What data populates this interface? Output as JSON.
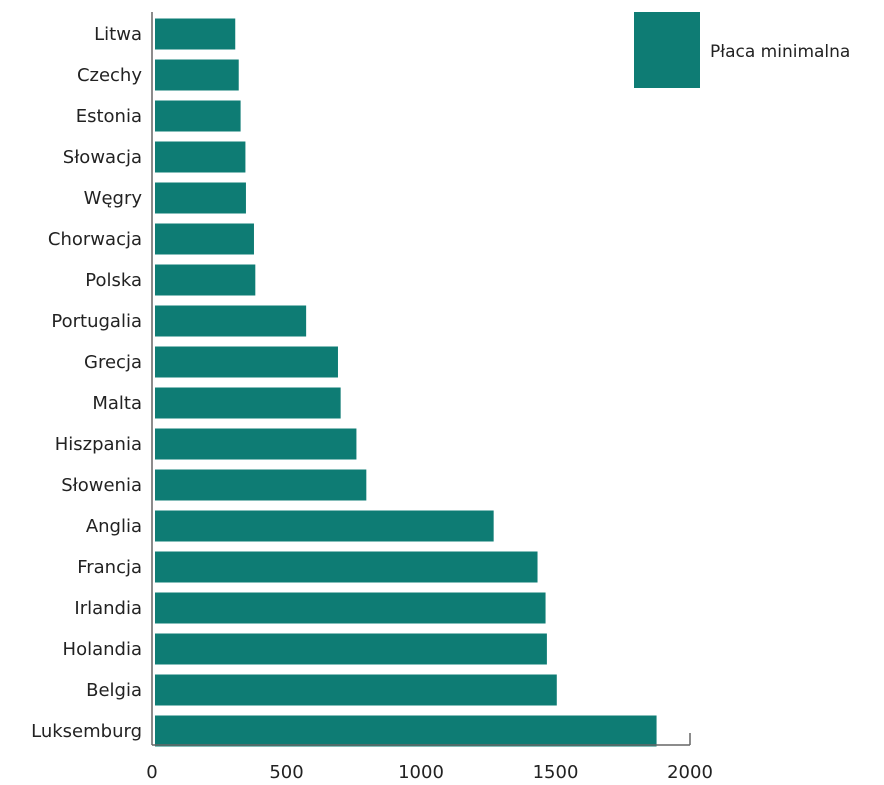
{
  "chart_data": {
    "type": "bar",
    "orientation": "horizontal",
    "categories": [
      "Litwa",
      "Czechy",
      "Estonia",
      "Słowacja",
      "Węgry",
      "Chorwacja",
      "Polska",
      "Portugalia",
      "Grecja",
      "Malta",
      "Hiszpania",
      "Słowenia",
      "Anglia",
      "Francja",
      "Irlandia",
      "Holandia",
      "Belgia",
      "Luksemburg"
    ],
    "series": [
      {
        "name": "Płaca minimalna",
        "values": [
          300,
          313,
          320,
          338,
          340,
          370,
          375,
          565,
          684,
          694,
          753,
          790,
          1266,
          1430,
          1460,
          1465,
          1502,
          1875
        ]
      }
    ],
    "xlim": [
      0,
      2000
    ],
    "x_ticks": [
      "0",
      "500",
      "1000",
      "1500",
      "2000"
    ],
    "grid": false,
    "legend_position": "top-right",
    "colors": {
      "bar": "#0e7c74",
      "text": "#222222",
      "axis": "#666666"
    }
  }
}
